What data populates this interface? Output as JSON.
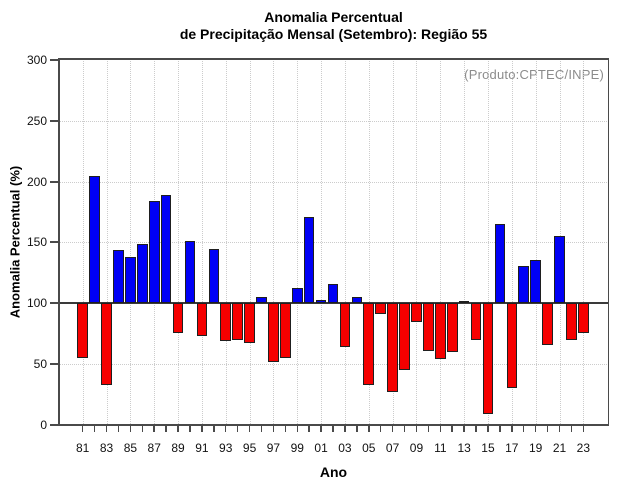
{
  "header": {
    "title_line1": "Anomalia Percentual",
    "title_line2": "de Precipitação Mensal (Setembro): Região 55",
    "annotation": "(Produto:CPTEC/INPE)"
  },
  "chart_data": {
    "type": "bar",
    "title": "Anomalia Percentual de Precipitação Mensal (Setembro): Região 55",
    "xlabel": "Ano",
    "ylabel": "Anomalia Percentual (%)",
    "ylim": [
      0,
      300
    ],
    "yticks": [
      0,
      50,
      100,
      150,
      200,
      250,
      300
    ],
    "baseline": 100,
    "grid": true,
    "legend": "none",
    "categories": [
      "81",
      "82",
      "83",
      "84",
      "85",
      "86",
      "87",
      "88",
      "89",
      "90",
      "91",
      "92",
      "93",
      "94",
      "95",
      "96",
      "97",
      "98",
      "99",
      "00",
      "01",
      "02",
      "03",
      "04",
      "05",
      "06",
      "07",
      "08",
      "09",
      "10",
      "11",
      "12",
      "13",
      "14",
      "15",
      "16",
      "17",
      "18",
      "19",
      "20",
      "21",
      "22",
      "23"
    ],
    "x_tick_labels": [
      "81",
      "83",
      "85",
      "87",
      "89",
      "91",
      "93",
      "95",
      "97",
      "99",
      "01",
      "03",
      "05",
      "07",
      "09",
      "11",
      "13",
      "15",
      "17",
      "19",
      "21",
      "23"
    ],
    "values": [
      55,
      205,
      33,
      144,
      138,
      149,
      184,
      189,
      76,
      151,
      73,
      145,
      69,
      70,
      67,
      105,
      52,
      55,
      113,
      171,
      103,
      116,
      64,
      105,
      33,
      91,
      27,
      45,
      85,
      61,
      54,
      60,
      102,
      70,
      9,
      165,
      30,
      131,
      136,
      66,
      155,
      70,
      76
    ],
    "colors": {
      "above_baseline": "#0000f5",
      "below_baseline": "#f50000",
      "bar_border": "#1f1f1f",
      "baseline_line": "#3a3a3a",
      "grid_line": "#cccccc",
      "axis_line": "#4a4a4a",
      "annotation_text": "#8c8c8c"
    }
  }
}
